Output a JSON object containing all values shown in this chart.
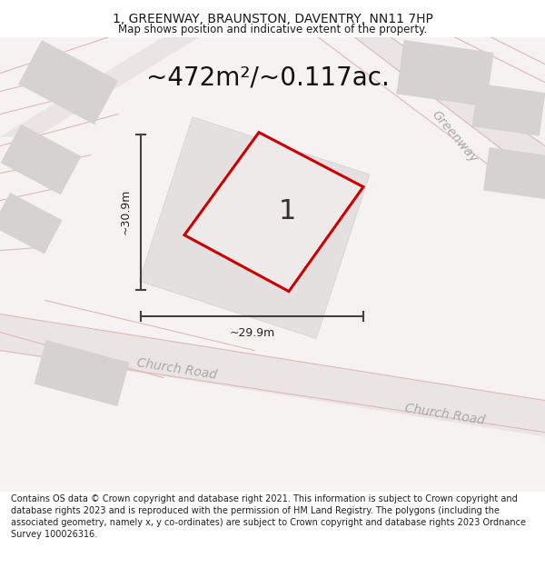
{
  "title_line1": "1, GREENWAY, BRAUNSTON, DAVENTRY, NN11 7HP",
  "title_line2": "Map shows position and indicative extent of the property.",
  "area_text": "~472m²/~0.117ac.",
  "label_number": "1",
  "dim_vertical": "~30.9m",
  "dim_horizontal": "~29.9m",
  "street_greenway": "Greenway",
  "street_church_road1": "Church Road",
  "street_church_road2": "Church Road",
  "footer": "Contains OS data © Crown copyright and database right 2021. This information is subject to Crown copyright and database rights 2023 and is reproduced with the permission of HM Land Registry. The polygons (including the associated geometry, namely x, y co-ordinates) are subject to Crown copyright and database rights 2023 Ordnance Survey 100026316.",
  "bg_color": "#ffffff",
  "map_bg": "#f5f0f0",
  "build_color": "#d6d2d2",
  "plot_fill": "#eeeaea",
  "plot_outline": "#cc0000",
  "road_color": "#eae4e4",
  "road_line_color": "#e0b8b8",
  "dim_line_color": "#404040",
  "street_label_color": "#aaaaaa",
  "title_fontsize": 10,
  "subtitle_fontsize": 8.5,
  "area_fontsize": 20,
  "label_fontsize": 22,
  "dim_fontsize": 9,
  "street_fontsize": 10,
  "footer_fontsize": 7
}
